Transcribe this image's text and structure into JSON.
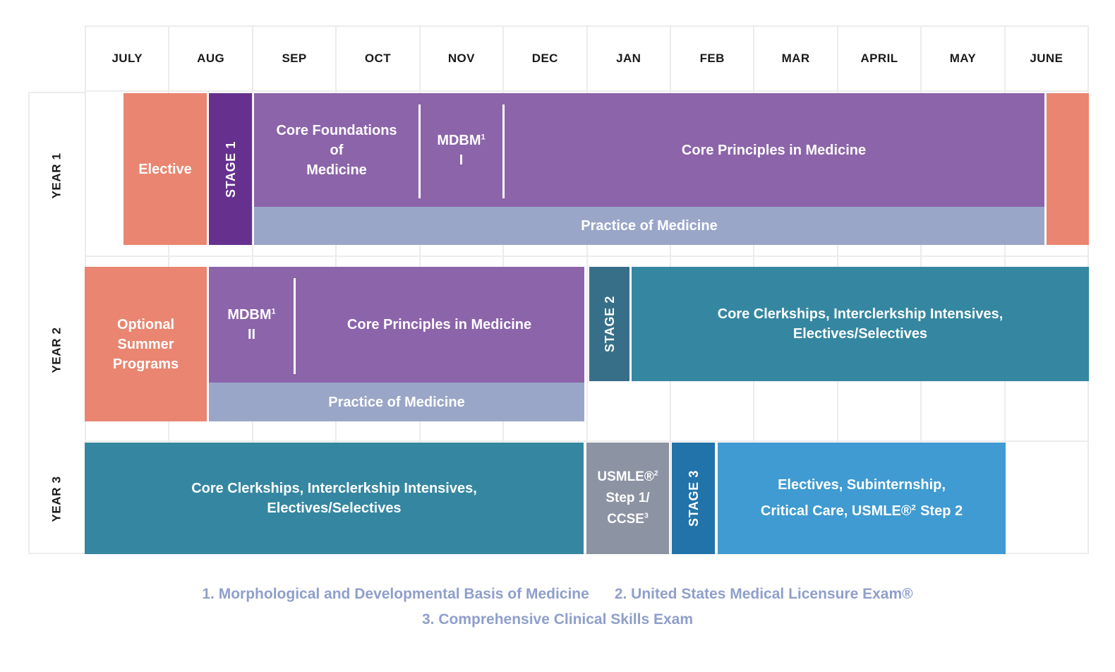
{
  "palette": {
    "salmon": "#E98570",
    "dark_purple": "#66308F",
    "purple": "#8C64AA",
    "periwinkle": "#9AA6C8",
    "teal": "#3587A1",
    "dark_teal": "#376F88",
    "gray": "#8C93A3",
    "stage3_blue": "#2273A9",
    "light_blue": "#3F9BD1",
    "footnote_text": "#8F9FCB",
    "grid_line": "#ECECEC",
    "header_text": "#1A1A1A"
  },
  "months": [
    "JULY",
    "AUG",
    "SEP",
    "OCT",
    "NOV",
    "DEC",
    "JAN",
    "FEB",
    "MAR",
    "APRIL",
    "MAY",
    "JUNE"
  ],
  "years": {
    "year1": "YEAR 1",
    "year2": "YEAR 2",
    "year3": "YEAR 3"
  },
  "year1": {
    "elective_label": "Elective",
    "stage_label": "STAGE 1",
    "core_foundations_l1": "Core Foundations",
    "core_foundations_l2": "of",
    "core_foundations_l3": "Medicine",
    "mdbm_base": "MDBM",
    "mdbm_sup": "1",
    "mdbm_numeral": "I",
    "core_principles_label": "Core Principles in Medicine",
    "practice_label": "Practice of Medicine"
  },
  "year2": {
    "summer_l1": "Optional",
    "summer_l2": "Summer",
    "summer_l3": "Programs",
    "mdbm_base": "MDBM",
    "mdbm_sup": "1",
    "mdbm_numeral": "II",
    "core_principles_label": "Core Principles in Medicine",
    "practice_label": "Practice of Medicine",
    "stage_label": "STAGE 2",
    "clerkships_l1": "Core Clerkships, Interclerkship Intensives,",
    "clerkships_l2": "Electives/Selectives"
  },
  "year3": {
    "clerkships_l1": "Core Clerkships, Interclerkship Intensives,",
    "clerkships_l2": "Electives/Selectives",
    "usmle_l1_base": "USMLE®",
    "usmle_l1_sup": "2",
    "usmle_l2": "Step 1/",
    "usmle_l3_base": "CCSE",
    "usmle_l3_sup": "3",
    "stage_label": "STAGE 3",
    "electives_l1": "Electives, Subinternship,",
    "electives_l2_pre": "Critical Care, USMLE®",
    "electives_l2_sup": "2",
    "electives_l2_post": "Step 2"
  },
  "footnotes": {
    "note1": "1. Morphological and Developmental Basis of Medicine",
    "note2": "2. United States Medical Licensure Exam®",
    "note3": "3. Comprehensive Clinical Skills Exam"
  }
}
